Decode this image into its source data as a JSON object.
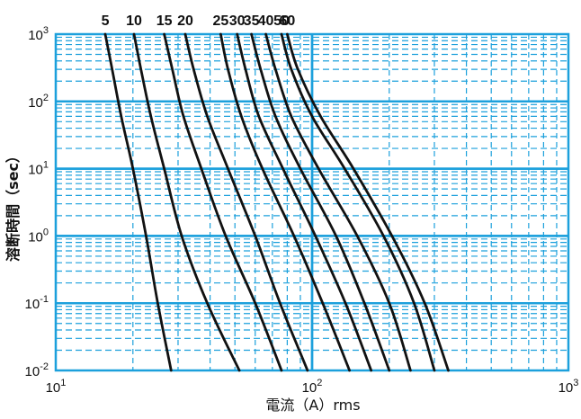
{
  "chart_data": {
    "type": "line",
    "title": "",
    "xlabel": "電流（A）rms",
    "ylabel": "溶断時間（sec）",
    "x_scale": "log",
    "y_scale": "log",
    "xlim": [
      10,
      1000
    ],
    "ylim": [
      0.01,
      1000
    ],
    "grid": true,
    "x_tick_labels": [
      {
        "base": "10",
        "exp": "1"
      },
      {
        "base": "10",
        "exp": "2"
      },
      {
        "base": "10",
        "exp": "3"
      }
    ],
    "y_tick_labels": [
      {
        "base": "10",
        "exp": "3"
      },
      {
        "base": "10",
        "exp": "2"
      },
      {
        "base": "10",
        "exp": "1"
      },
      {
        "base": "10",
        "exp": "0"
      },
      {
        "base": "10",
        "exp": "-1"
      },
      {
        "base": "10",
        "exp": "-2"
      }
    ],
    "series": [
      {
        "name": "5",
        "points": [
          [
            15.6,
            1000
          ],
          [
            16.6,
            300
          ],
          [
            18.0,
            60
          ],
          [
            20,
            10
          ],
          [
            22.5,
            1
          ],
          [
            25,
            0.1
          ],
          [
            28.2,
            0.01
          ]
        ]
      },
      {
        "name": "10",
        "points": [
          [
            20.2,
            1000
          ],
          [
            21.5,
            300
          ],
          [
            23.5,
            60
          ],
          [
            26.5,
            10
          ],
          [
            31,
            1
          ],
          [
            39,
            0.1
          ],
          [
            52,
            0.01
          ]
        ]
      },
      {
        "name": "15",
        "points": [
          [
            26.5,
            1000
          ],
          [
            28.5,
            300
          ],
          [
            31.5,
            60
          ],
          [
            37,
            10
          ],
          [
            46,
            1
          ],
          [
            60,
            0.1
          ],
          [
            76,
            0.01
          ]
        ]
      },
      {
        "name": "20",
        "points": [
          [
            32,
            1000
          ],
          [
            34.5,
            300
          ],
          [
            39,
            60
          ],
          [
            47,
            10
          ],
          [
            60,
            1
          ],
          [
            75,
            0.1
          ],
          [
            96,
            0.01
          ]
        ]
      },
      {
        "name": "25",
        "points": [
          [
            44,
            1000
          ],
          [
            47,
            300
          ],
          [
            53,
            60
          ],
          [
            64,
            10
          ],
          [
            85,
            1
          ],
          [
            110,
            0.1
          ],
          [
            140,
            0.01
          ]
        ]
      },
      {
        "name": "30",
        "points": [
          [
            51,
            1000
          ],
          [
            55,
            300
          ],
          [
            62,
            60
          ],
          [
            77,
            10
          ],
          [
            103,
            1
          ],
          [
            135,
            0.1
          ],
          [
            170,
            0.01
          ]
        ]
      },
      {
        "name": "35",
        "points": [
          [
            58,
            1000
          ],
          [
            63,
            300
          ],
          [
            72,
            60
          ],
          [
            90,
            10
          ],
          [
            124,
            1
          ],
          [
            160,
            0.1
          ],
          [
            200,
            0.01
          ]
        ]
      },
      {
        "name": "40",
        "points": [
          [
            66,
            1000
          ],
          [
            72,
            300
          ],
          [
            83,
            60
          ],
          [
            106,
            10
          ],
          [
            150,
            1
          ],
          [
            200,
            0.1
          ],
          [
            242,
            0.01
          ]
        ]
      },
      {
        "name": "50",
        "points": [
          [
            76,
            1000
          ],
          [
            83,
            300
          ],
          [
            100,
            60
          ],
          [
            134,
            10
          ],
          [
            190,
            1
          ],
          [
            250,
            0.1
          ],
          [
            300,
            0.01
          ]
        ]
      },
      {
        "name": "60",
        "points": [
          [
            80,
            1000
          ],
          [
            88,
            300
          ],
          [
            108,
            60
          ],
          [
            145,
            10
          ],
          [
            205,
            1
          ],
          [
            275,
            0.1
          ],
          [
            340,
            0.01
          ]
        ]
      }
    ]
  }
}
